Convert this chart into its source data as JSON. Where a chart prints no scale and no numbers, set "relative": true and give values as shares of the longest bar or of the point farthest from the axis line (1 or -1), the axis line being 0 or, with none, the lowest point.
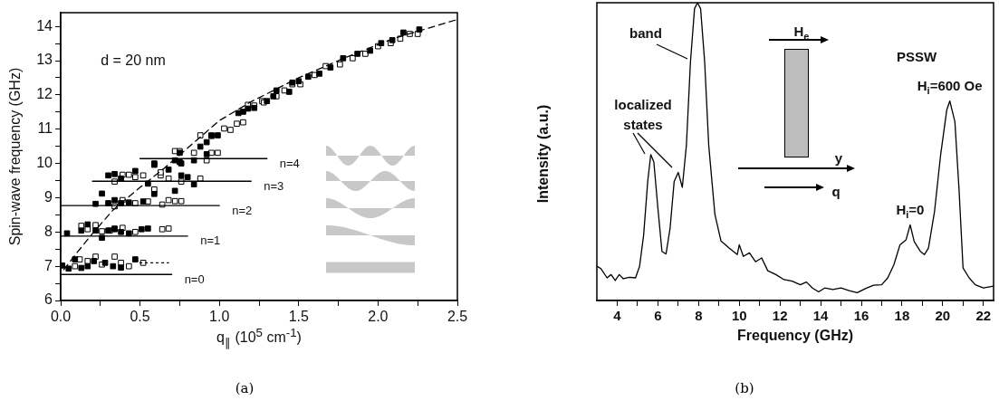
{
  "chart_data": [
    {
      "type": "scatter",
      "xlabel": "q$_{∥}$ (10$^{5}$ cm$^{-1}$)",
      "ylabel": "Spin-wave frequency (GHz)",
      "annotations": [
        "d = 20 nm",
        "(a)"
      ],
      "xlim": [
        0,
        2.5
      ],
      "ylim": [
        6,
        14.4
      ],
      "xticks": [
        {
          "value": 0,
          "label": "0.0"
        },
        {
          "value": 0.25,
          "label": null
        },
        {
          "value": 0.5,
          "label": "0.5"
        },
        {
          "value": 0.75,
          "label": null
        },
        {
          "value": 1,
          "label": "1.0"
        },
        {
          "value": 1.25,
          "label": null
        },
        {
          "value": 1.5,
          "label": "1.5"
        },
        {
          "value": 1.75,
          "label": null
        },
        {
          "value": 2,
          "label": "2.0"
        },
        {
          "value": 2.25,
          "label": null
        },
        {
          "value": 2.5,
          "label": "2.5"
        }
      ],
      "yticks": [
        6,
        {
          "value": 6.5,
          "label": null
        },
        7,
        {
          "value": 7.5,
          "label": null
        },
        8,
        {
          "value": 8.5,
          "label": null
        },
        9,
        {
          "value": 9.5,
          "label": null
        },
        10,
        {
          "value": 10.5,
          "label": null
        },
        11,
        {
          "value": 11.5,
          "label": null
        },
        12,
        {
          "value": 12.5,
          "label": null
        },
        13,
        {
          "value": 13.5,
          "label": null
        },
        14
      ],
      "grid": false,
      "legend": false,
      "marker": "square",
      "series": [
        {
          "type": "line",
          "line_style": "dashed",
          "marker": "none",
          "color": "#000000",
          "x": [
            0.02,
            0.1,
            0.2,
            0.33,
            0.5,
            0.65,
            0.8,
            1.0,
            1.2,
            1.5,
            1.8,
            2.1,
            2.5
          ],
          "values": [
            6.9,
            7.38,
            7.95,
            8.64,
            9.3,
            9.85,
            10.45,
            11.25,
            11.8,
            12.5,
            13.1,
            13.65,
            14.2
          ]
        },
        {
          "type": "line",
          "line_style": "dotted",
          "marker": "none",
          "color": "#000000",
          "x": [
            0.5,
            0.68
          ],
          "values": [
            7.1,
            7.1
          ]
        },
        {
          "type": "line",
          "marker": "none",
          "name": "n=0",
          "color": "#000000",
          "x": [
            0,
            0.7
          ],
          "values": [
            6.76,
            6.76
          ]
        },
        {
          "type": "line",
          "marker": "none",
          "name": "n=1",
          "color": "#000000",
          "x": [
            0,
            0.8
          ],
          "values": [
            7.88,
            7.88
          ]
        },
        {
          "type": "line",
          "marker": "none",
          "name": "n=2",
          "color": "#000000",
          "x": [
            0,
            1.0
          ],
          "values": [
            8.77,
            8.77
          ]
        },
        {
          "type": "line",
          "marker": "none",
          "name": "n=3",
          "color": "#000000",
          "x": [
            0.2,
            1.2
          ],
          "values": [
            9.48,
            9.48
          ]
        },
        {
          "type": "line",
          "marker": "none",
          "name": "n=4",
          "color": "#000000",
          "x": [
            0.5,
            1.3
          ],
          "values": [
            10.14,
            10.14
          ]
        },
        {
          "color": "#000000",
          "x": [
            0.01,
            0.05,
            0.09,
            0.13,
            0.17,
            0.21,
            0.28,
            0.33,
            0.38,
            0.47,
            0.04,
            0.13,
            0.17,
            0.22,
            0.26,
            0.3,
            0.34,
            0.38,
            0.43,
            0.51,
            0.55,
            0.22,
            0.26,
            0.3,
            0.34,
            0.38,
            0.43,
            0.52,
            0.59,
            0.72,
            0.3,
            0.34,
            0.38,
            0.47,
            0.55,
            0.59,
            0.68,
            0.76,
            0.8,
            0.84,
            0.76,
            0.59,
            0.72,
            0.75,
            0.75,
            0.84,
            0.88,
            0.92,
            0.92,
            0.95,
            0.99,
            1.12,
            1.15,
            1.18,
            1.22,
            1.3,
            1.34,
            1.36,
            1.44,
            1.46,
            1.5,
            1.56,
            1.63,
            1.7,
            1.78,
            1.87,
            1.95,
            2.02,
            2.09,
            2.16,
            2.26
          ],
          "values": [
            7.02,
            6.93,
            7.2,
            6.95,
            7.0,
            7.15,
            7.1,
            7.0,
            6.96,
            7.2,
            7.96,
            8.04,
            8.22,
            8.04,
            7.83,
            8.04,
            8.08,
            8.0,
            7.96,
            8.08,
            8.1,
            8.82,
            9.12,
            8.84,
            8.93,
            8.84,
            8.86,
            8.89,
            9.11,
            9.2,
            9.65,
            9.69,
            9.56,
            9.78,
            9.41,
            9.96,
            9.82,
            9.65,
            9.6,
            9.39,
            10.0,
            10.0,
            10.09,
            10.04,
            10.31,
            10.09,
            10.49,
            10.62,
            10.27,
            10.82,
            10.82,
            11.47,
            11.51,
            11.6,
            11.62,
            11.82,
            11.96,
            12.13,
            12.09,
            12.36,
            12.4,
            12.53,
            12.62,
            12.8,
            13.07,
            13.2,
            13.29,
            13.51,
            13.6,
            13.82,
            13.91
          ]
        },
        {
          "color": "#ffffff",
          "x": [
            0.09,
            0.12,
            0.17,
            0.22,
            0.26,
            0.34,
            0.38,
            0.43,
            0.52,
            0.13,
            0.17,
            0.22,
            0.26,
            0.31,
            0.34,
            0.39,
            0.47,
            0.64,
            0.68,
            0.34,
            0.39,
            0.47,
            0.55,
            0.59,
            0.64,
            0.68,
            0.72,
            0.76,
            0.34,
            0.39,
            0.43,
            0.47,
            0.52,
            0.63,
            0.68,
            0.76,
            0.88,
            0.63,
            0.72,
            0.75,
            0.84,
            0.92,
            0.95,
            0.99,
            0.88,
            0.95,
            1.03,
            1.07,
            1.11,
            1.15,
            1.18,
            1.22,
            1.27,
            1.28,
            1.36,
            1.41,
            1.46,
            1.51,
            1.6,
            1.67,
            1.76,
            1.84,
            1.92,
            2.0,
            2.08,
            2.14,
            2.2,
            2.25
          ],
          "values": [
            7.0,
            7.2,
            7.15,
            7.28,
            7.05,
            7.28,
            7.1,
            7.0,
            7.1,
            8.18,
            8.08,
            8.2,
            8.02,
            8.04,
            8.1,
            8.12,
            8.0,
            8.08,
            8.1,
            8.75,
            8.93,
            8.84,
            8.89,
            9.24,
            8.8,
            8.93,
            8.9,
            8.9,
            9.47,
            9.67,
            9.67,
            9.6,
            9.65,
            9.65,
            9.56,
            9.47,
            9.56,
            9.74,
            10.36,
            10.36,
            10.31,
            10.09,
            10.31,
            10.31,
            10.82,
            10.8,
            11.02,
            10.98,
            11.16,
            11.2,
            11.71,
            11.69,
            11.82,
            11.78,
            11.96,
            12.13,
            12.31,
            12.31,
            12.58,
            12.84,
            12.89,
            13.07,
            13.2,
            13.42,
            13.51,
            13.64,
            13.78,
            13.78
          ]
        }
      ]
    },
    {
      "type": "line",
      "relative": true,
      "xlabel": "Frequency (GHz)",
      "ylabel": "Intensity (a.u.)",
      "annotations": [
        "band",
        "localized states",
        "PSSW",
        "H$_{e}$",
        "y",
        "q",
        {
          "text": "H$_{i}$=0",
          "x": 18.4,
          "y": 0.254
        },
        {
          "text": "H$_{i}$=600 Oe",
          "x": 20.35,
          "y": 0.67
        },
        "(b)"
      ],
      "xlim": [
        3,
        22.5
      ],
      "xticks": [
        4,
        {
          "value": 5,
          "label": null
        },
        6,
        {
          "value": 7,
          "label": null
        },
        8,
        {
          "value": 9,
          "label": null
        },
        10,
        {
          "value": 11,
          "label": null
        },
        12,
        {
          "value": 13,
          "label": null
        },
        14,
        {
          "value": 15,
          "label": null
        },
        16,
        {
          "value": 17,
          "label": null
        },
        18,
        {
          "value": 19,
          "label": null
        },
        20,
        {
          "value": 21,
          "label": null
        },
        22
      ],
      "grid": false,
      "legend": false,
      "marker": "none",
      "series": [
        {
          "color": "#000000",
          "x": [
            3.0,
            3.2,
            3.5,
            3.7,
            3.9,
            4.1,
            4.3,
            4.6,
            4.9,
            5.1,
            5.3,
            5.5,
            5.65,
            5.8,
            6.0,
            6.2,
            6.4,
            6.6,
            6.8,
            7.0,
            7.2,
            7.4,
            7.6,
            7.8,
            7.95,
            8.1,
            8.3,
            8.5,
            8.8,
            9.1,
            9.5,
            9.9,
            10.0,
            10.2,
            10.5,
            10.8,
            11.1,
            11.4,
            11.8,
            12.2,
            12.6,
            13.0,
            13.3,
            13.6,
            13.9,
            14.2,
            14.6,
            15.0,
            15.4,
            15.8,
            16.2,
            16.6,
            17.0,
            17.3,
            17.6,
            17.9,
            18.2,
            18.4,
            18.6,
            18.9,
            19.1,
            19.3,
            19.6,
            19.9,
            20.2,
            20.35,
            20.6,
            20.8,
            21.0,
            21.3,
            21.6,
            22.0,
            22.5
          ],
          "values": [
            0.115,
            0.107,
            0.076,
            0.087,
            0.067,
            0.087,
            0.073,
            0.078,
            0.076,
            0.115,
            0.22,
            0.4,
            0.49,
            0.465,
            0.31,
            0.165,
            0.156,
            0.243,
            0.4,
            0.43,
            0.38,
            0.52,
            0.8,
            0.98,
            1.0,
            0.98,
            0.8,
            0.52,
            0.29,
            0.2,
            0.176,
            0.154,
            0.187,
            0.148,
            0.16,
            0.13,
            0.143,
            0.1,
            0.087,
            0.07,
            0.065,
            0.053,
            0.062,
            0.042,
            0.029,
            0.042,
            0.037,
            0.042,
            0.033,
            0.026,
            0.04,
            0.051,
            0.053,
            0.076,
            0.12,
            0.187,
            0.204,
            0.254,
            0.198,
            0.165,
            0.154,
            0.176,
            0.3,
            0.49,
            0.64,
            0.67,
            0.6,
            0.376,
            0.109,
            0.076,
            0.053,
            0.042,
            0.048
          ]
        }
      ]
    }
  ]
}
